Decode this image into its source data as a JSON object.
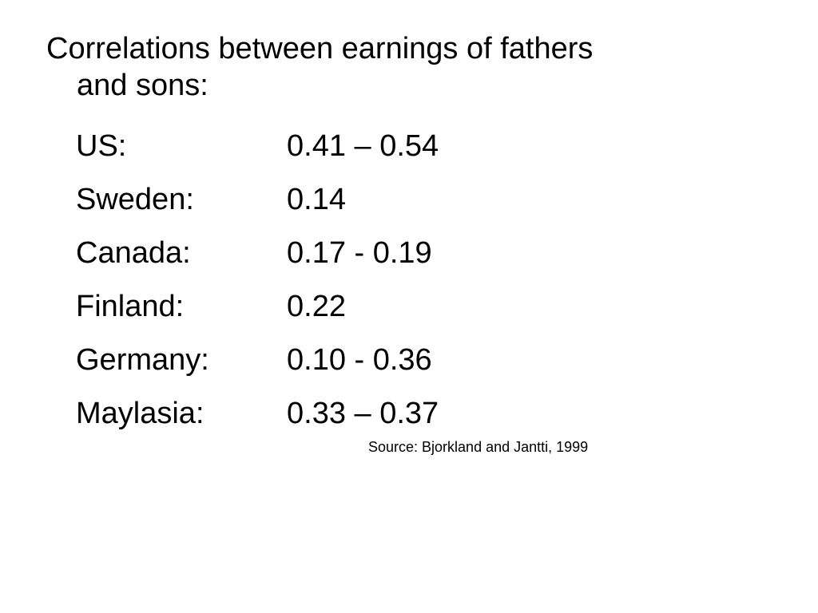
{
  "slide": {
    "title_line1": "Correlations between earnings of fathers",
    "title_line2": "and sons:",
    "rows": [
      {
        "country": "US:",
        "value": "0.41 – 0.54"
      },
      {
        "country": "Sweden:",
        "value": "0.14"
      },
      {
        "country": "Canada:",
        "value": "0.17 - 0.19"
      },
      {
        "country": "Finland:",
        "value": "0.22"
      },
      {
        "country": "Germany:",
        "value": "0.10 - 0.36"
      },
      {
        "country": "Maylasia:",
        "value": "0.33 – 0.37"
      }
    ],
    "source": "Source: Bjorkland and Jantti, 1999"
  }
}
